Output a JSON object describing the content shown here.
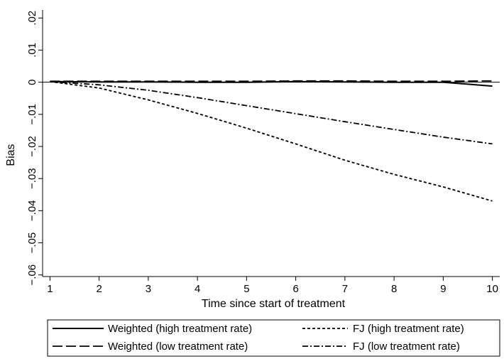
{
  "chart_data": {
    "type": "line",
    "title": "",
    "xlabel": "Time since start of treatment",
    "ylabel": "Bias",
    "xlim": [
      0.85,
      10.15
    ],
    "ylim": [
      -0.0605,
      0.0225
    ],
    "x_ticks": [
      1,
      2,
      3,
      4,
      5,
      6,
      7,
      8,
      9,
      10
    ],
    "x_tick_labels": [
      "1",
      "2",
      "3",
      "4",
      "5",
      "6",
      "7",
      "8",
      "9",
      "10"
    ],
    "y_ticks": [
      0.02,
      0.01,
      0,
      -0.01,
      -0.02,
      -0.03,
      -0.04,
      -0.05,
      -0.06
    ],
    "y_tick_labels": [
      ".02",
      ".01",
      "0",
      "−.01",
      "−.02",
      "−.03",
      "−.04",
      "−.05",
      "−.06"
    ],
    "reference_line_y": 0,
    "grid": false,
    "legend_position": "bottom",
    "x": [
      1,
      2,
      3,
      4,
      5,
      6,
      7,
      8,
      9,
      10
    ],
    "series": [
      {
        "name": "Weighted (high treatment rate)",
        "style": "solid",
        "values": [
          0.0002,
          0.0001,
          0.0001,
          0.0,
          0.0,
          0.0002,
          0.0001,
          0.0,
          0.0,
          -0.0012
        ]
      },
      {
        "name": "FJ (high treatment rate)",
        "style": "dash",
        "values": [
          0.0002,
          -0.0018,
          -0.0055,
          -0.0097,
          -0.0143,
          -0.0192,
          -0.0243,
          -0.0287,
          -0.0326,
          -0.037
        ]
      },
      {
        "name": "Weighted (low treatment rate)",
        "style": "longdash",
        "values": [
          0.0003,
          0.0003,
          0.0003,
          0.0003,
          0.0003,
          0.0004,
          0.0004,
          0.0003,
          0.0003,
          0.0004
        ]
      },
      {
        "name": "FJ (low treatment rate)",
        "style": "dashdot",
        "values": [
          0.0002,
          -0.0008,
          -0.0025,
          -0.0048,
          -0.0073,
          -0.0098,
          -0.0123,
          -0.0147,
          -0.0171,
          -0.0192
        ]
      }
    ]
  }
}
